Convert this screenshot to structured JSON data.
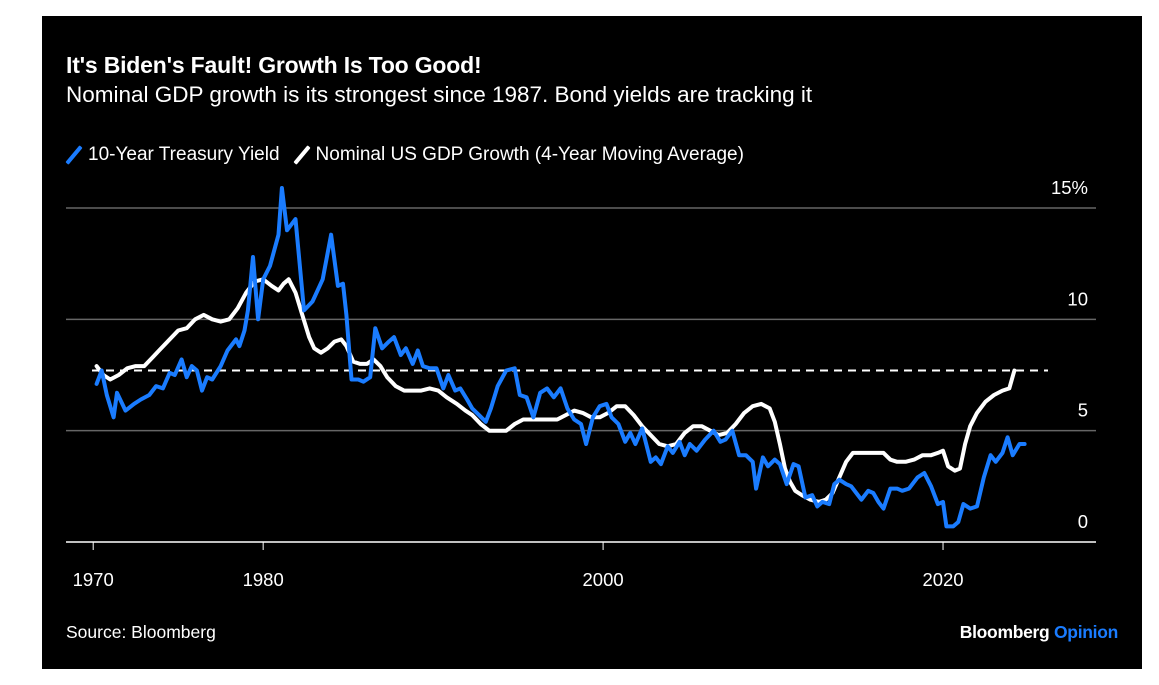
{
  "header": {
    "title": "It's Biden's Fault! Growth Is Too Good!",
    "subtitle": "Nominal GDP growth is its strongest since 1987. Bond yields are tracking it"
  },
  "footer": {
    "source": "Source: Bloomberg",
    "brand_primary": "Bloomberg",
    "brand_secondary": "Opinion"
  },
  "colors": {
    "background": "#000000",
    "treasury": "#1a7cff",
    "gdp": "#ffffff",
    "grid": "#666666",
    "brand_accent": "#1a7cff"
  },
  "chart_data": {
    "type": "line",
    "title": "It's Biden's Fault! Growth Is Too Good!",
    "subtitle": "Nominal GDP growth is its strongest since 1987. Bond yields are tracking it",
    "xlabel": "",
    "ylabel": "",
    "xlim": [
      1968.4,
      2029
    ],
    "ylim": [
      0,
      15
    ],
    "x_ticks": [
      1970,
      1980,
      2000,
      2020
    ],
    "x_tick_labels": [
      "1970",
      "1980",
      "2000",
      "2020"
    ],
    "y_ticks": [
      0,
      5,
      10,
      15
    ],
    "y_tick_labels": [
      "0",
      "5",
      "10",
      "15%"
    ],
    "y_axis_side": "right",
    "grid": true,
    "legend_position": "top-left",
    "reference_line": {
      "value": 7.7,
      "style": "dashed",
      "label": ""
    },
    "series": [
      {
        "name": "10-Year Treasury Yield",
        "color": "#1a7cff",
        "points": [
          [
            1970.2,
            7.1
          ],
          [
            1970.5,
            7.7
          ],
          [
            1970.8,
            6.6
          ],
          [
            1971.2,
            5.6
          ],
          [
            1971.4,
            6.7
          ],
          [
            1971.9,
            5.9
          ],
          [
            1972.4,
            6.2
          ],
          [
            1972.8,
            6.4
          ],
          [
            1973.3,
            6.6
          ],
          [
            1973.7,
            7.0
          ],
          [
            1974.1,
            6.9
          ],
          [
            1974.5,
            7.6
          ],
          [
            1974.8,
            7.5
          ],
          [
            1975.2,
            8.2
          ],
          [
            1975.5,
            7.4
          ],
          [
            1975.8,
            7.9
          ],
          [
            1976.1,
            7.7
          ],
          [
            1976.4,
            6.8
          ],
          [
            1976.7,
            7.4
          ],
          [
            1977.0,
            7.3
          ],
          [
            1977.5,
            7.9
          ],
          [
            1977.9,
            8.6
          ],
          [
            1978.4,
            9.1
          ],
          [
            1978.6,
            8.8
          ],
          [
            1978.9,
            9.5
          ],
          [
            1979.1,
            10.4
          ],
          [
            1979.4,
            12.8
          ],
          [
            1979.7,
            10.0
          ],
          [
            1980.0,
            11.8
          ],
          [
            1980.4,
            12.4
          ],
          [
            1980.9,
            13.8
          ],
          [
            1981.1,
            15.9
          ],
          [
            1981.4,
            14.0
          ],
          [
            1981.9,
            14.5
          ],
          [
            1982.4,
            10.4
          ],
          [
            1982.9,
            10.8
          ],
          [
            1983.5,
            11.8
          ],
          [
            1984.0,
            13.8
          ],
          [
            1984.4,
            11.5
          ],
          [
            1984.7,
            11.6
          ],
          [
            1984.9,
            10.2
          ],
          [
            1985.2,
            7.3
          ],
          [
            1985.6,
            7.3
          ],
          [
            1985.9,
            7.2
          ],
          [
            1986.3,
            7.4
          ],
          [
            1986.6,
            9.6
          ],
          [
            1987.0,
            8.7
          ],
          [
            1987.4,
            9.0
          ],
          [
            1987.7,
            9.2
          ],
          [
            1988.1,
            8.4
          ],
          [
            1988.4,
            8.7
          ],
          [
            1988.8,
            8.0
          ],
          [
            1989.1,
            8.6
          ],
          [
            1989.4,
            7.9
          ],
          [
            1989.8,
            7.8
          ],
          [
            1990.2,
            7.8
          ],
          [
            1990.6,
            6.9
          ],
          [
            1990.9,
            7.5
          ],
          [
            1991.3,
            6.8
          ],
          [
            1991.6,
            6.9
          ],
          [
            1992.0,
            6.4
          ],
          [
            1992.3,
            6.0
          ],
          [
            1992.7,
            5.7
          ],
          [
            1993.1,
            5.4
          ],
          [
            1993.4,
            6.0
          ],
          [
            1993.8,
            7.0
          ],
          [
            1994.3,
            7.7
          ],
          [
            1994.8,
            7.8
          ],
          [
            1995.1,
            6.6
          ],
          [
            1995.5,
            6.5
          ],
          [
            1995.9,
            5.6
          ],
          [
            1996.3,
            6.7
          ],
          [
            1996.7,
            6.9
          ],
          [
            1997.1,
            6.5
          ],
          [
            1997.5,
            6.9
          ],
          [
            1997.9,
            6.0
          ],
          [
            1998.3,
            5.5
          ],
          [
            1998.7,
            5.3
          ],
          [
            1999.0,
            4.4
          ],
          [
            1999.4,
            5.6
          ],
          [
            1999.8,
            6.1
          ],
          [
            2000.2,
            6.2
          ],
          [
            2000.5,
            5.6
          ],
          [
            2000.9,
            5.3
          ],
          [
            2001.3,
            4.5
          ],
          [
            2001.6,
            4.9
          ],
          [
            2001.9,
            4.4
          ],
          [
            2002.3,
            5.1
          ],
          [
            2002.8,
            3.6
          ],
          [
            2003.1,
            3.8
          ],
          [
            2003.4,
            3.5
          ],
          [
            2003.8,
            4.3
          ],
          [
            2004.1,
            4.0
          ],
          [
            2004.5,
            4.5
          ],
          [
            2004.8,
            3.9
          ],
          [
            2005.1,
            4.4
          ],
          [
            2005.5,
            4.1
          ],
          [
            2006.0,
            4.6
          ],
          [
            2006.5,
            5.0
          ],
          [
            2006.9,
            4.5
          ],
          [
            2007.2,
            4.6
          ],
          [
            2007.6,
            5.0
          ],
          [
            2008.0,
            3.9
          ],
          [
            2008.4,
            3.9
          ],
          [
            2008.8,
            3.6
          ],
          [
            2009.0,
            2.4
          ],
          [
            2009.4,
            3.8
          ],
          [
            2009.7,
            3.4
          ],
          [
            2010.1,
            3.7
          ],
          [
            2010.4,
            3.5
          ],
          [
            2010.8,
            2.6
          ],
          [
            2011.2,
            3.5
          ],
          [
            2011.5,
            3.4
          ],
          [
            2011.9,
            2.0
          ],
          [
            2012.3,
            2.1
          ],
          [
            2012.6,
            1.6
          ],
          [
            2012.9,
            1.8
          ],
          [
            2013.3,
            1.7
          ],
          [
            2013.6,
            2.6
          ],
          [
            2013.9,
            2.8
          ],
          [
            2014.3,
            2.6
          ],
          [
            2014.6,
            2.5
          ],
          [
            2014.9,
            2.2
          ],
          [
            2015.2,
            1.9
          ],
          [
            2015.6,
            2.3
          ],
          [
            2015.9,
            2.2
          ],
          [
            2016.2,
            1.8
          ],
          [
            2016.5,
            1.5
          ],
          [
            2016.9,
            2.4
          ],
          [
            2017.3,
            2.4
          ],
          [
            2017.6,
            2.3
          ],
          [
            2018.0,
            2.4
          ],
          [
            2018.5,
            2.9
          ],
          [
            2018.9,
            3.1
          ],
          [
            2019.3,
            2.5
          ],
          [
            2019.7,
            1.7
          ],
          [
            2020.0,
            1.8
          ],
          [
            2020.2,
            0.7
          ],
          [
            2020.6,
            0.7
          ],
          [
            2020.9,
            0.9
          ],
          [
            2021.2,
            1.7
          ],
          [
            2021.6,
            1.5
          ],
          [
            2022.0,
            1.6
          ],
          [
            2022.4,
            2.9
          ],
          [
            2022.8,
            3.9
          ],
          [
            2023.1,
            3.6
          ],
          [
            2023.5,
            4.0
          ],
          [
            2023.8,
            4.7
          ],
          [
            2024.1,
            3.9
          ],
          [
            2024.5,
            4.4
          ],
          [
            2024.8,
            4.4
          ]
        ]
      },
      {
        "name": "Nominal US GDP Growth (4-Year Moving Average)",
        "color": "#ffffff",
        "points": [
          [
            1970.2,
            7.9
          ],
          [
            1970.6,
            7.5
          ],
          [
            1971.0,
            7.3
          ],
          [
            1971.5,
            7.5
          ],
          [
            1972.0,
            7.8
          ],
          [
            1972.5,
            7.9
          ],
          [
            1973.0,
            7.9
          ],
          [
            1973.5,
            8.3
          ],
          [
            1974.0,
            8.7
          ],
          [
            1974.5,
            9.1
          ],
          [
            1975.0,
            9.5
          ],
          [
            1975.5,
            9.6
          ],
          [
            1976.0,
            10.0
          ],
          [
            1976.5,
            10.2
          ],
          [
            1977.0,
            10.0
          ],
          [
            1977.5,
            9.9
          ],
          [
            1978.0,
            10.0
          ],
          [
            1978.5,
            10.5
          ],
          [
            1979.0,
            11.2
          ],
          [
            1979.5,
            11.7
          ],
          [
            1980.0,
            11.8
          ],
          [
            1980.5,
            11.5
          ],
          [
            1980.9,
            11.3
          ],
          [
            1981.2,
            11.6
          ],
          [
            1981.5,
            11.8
          ],
          [
            1981.9,
            11.2
          ],
          [
            1982.3,
            10.2
          ],
          [
            1982.7,
            9.2
          ],
          [
            1983.0,
            8.7
          ],
          [
            1983.4,
            8.5
          ],
          [
            1983.8,
            8.7
          ],
          [
            1984.2,
            9.0
          ],
          [
            1984.6,
            9.1
          ],
          [
            1984.9,
            8.8
          ],
          [
            1985.3,
            8.1
          ],
          [
            1985.7,
            8.0
          ],
          [
            1986.1,
            8.0
          ],
          [
            1986.5,
            8.2
          ],
          [
            1986.9,
            7.9
          ],
          [
            1987.3,
            7.4
          ],
          [
            1987.8,
            7.0
          ],
          [
            1988.3,
            6.8
          ],
          [
            1988.8,
            6.8
          ],
          [
            1989.3,
            6.8
          ],
          [
            1989.8,
            6.9
          ],
          [
            1990.3,
            6.8
          ],
          [
            1990.8,
            6.5
          ],
          [
            1991.4,
            6.2
          ],
          [
            1991.9,
            5.9
          ],
          [
            1992.3,
            5.7
          ],
          [
            1992.8,
            5.3
          ],
          [
            1993.3,
            5.0
          ],
          [
            1993.8,
            5.0
          ],
          [
            1994.3,
            5.0
          ],
          [
            1994.8,
            5.3
          ],
          [
            1995.3,
            5.5
          ],
          [
            1995.8,
            5.5
          ],
          [
            1996.3,
            5.5
          ],
          [
            1996.8,
            5.5
          ],
          [
            1997.3,
            5.5
          ],
          [
            1997.8,
            5.7
          ],
          [
            1998.3,
            5.9
          ],
          [
            1998.8,
            5.8
          ],
          [
            1999.3,
            5.6
          ],
          [
            1999.8,
            5.6
          ],
          [
            2000.3,
            5.8
          ],
          [
            2000.8,
            6.1
          ],
          [
            2001.3,
            6.1
          ],
          [
            2001.8,
            5.7
          ],
          [
            2002.3,
            5.2
          ],
          [
            2002.8,
            4.8
          ],
          [
            2003.3,
            4.4
          ],
          [
            2003.8,
            4.3
          ],
          [
            2004.3,
            4.4
          ],
          [
            2004.8,
            4.9
          ],
          [
            2005.3,
            5.2
          ],
          [
            2005.8,
            5.2
          ],
          [
            2006.3,
            5.0
          ],
          [
            2006.8,
            4.8
          ],
          [
            2007.3,
            4.9
          ],
          [
            2007.8,
            5.3
          ],
          [
            2008.3,
            5.8
          ],
          [
            2008.8,
            6.1
          ],
          [
            2009.3,
            6.2
          ],
          [
            2009.8,
            6.0
          ],
          [
            2010.1,
            5.4
          ],
          [
            2010.4,
            4.4
          ],
          [
            2010.7,
            3.3
          ],
          [
            2011.0,
            2.7
          ],
          [
            2011.3,
            2.3
          ],
          [
            2011.7,
            2.1
          ],
          [
            2012.2,
            1.9
          ],
          [
            2012.7,
            1.8
          ],
          [
            2013.1,
            1.9
          ],
          [
            2013.5,
            2.2
          ],
          [
            2013.9,
            2.9
          ],
          [
            2014.3,
            3.6
          ],
          [
            2014.7,
            4.0
          ],
          [
            2015.3,
            4.0
          ],
          [
            2016.0,
            4.0
          ],
          [
            2016.5,
            4.0
          ],
          [
            2016.9,
            3.7
          ],
          [
            2017.3,
            3.6
          ],
          [
            2017.8,
            3.6
          ],
          [
            2018.3,
            3.7
          ],
          [
            2018.8,
            3.9
          ],
          [
            2019.3,
            3.9
          ],
          [
            2019.7,
            4.0
          ],
          [
            2020.0,
            4.1
          ],
          [
            2020.3,
            3.4
          ],
          [
            2020.7,
            3.2
          ],
          [
            2021.0,
            3.3
          ],
          [
            2021.3,
            4.4
          ],
          [
            2021.6,
            5.2
          ],
          [
            2022.0,
            5.8
          ],
          [
            2022.5,
            6.3
          ],
          [
            2023.0,
            6.6
          ],
          [
            2023.5,
            6.8
          ],
          [
            2023.9,
            6.9
          ],
          [
            2024.2,
            7.7
          ]
        ]
      }
    ]
  }
}
